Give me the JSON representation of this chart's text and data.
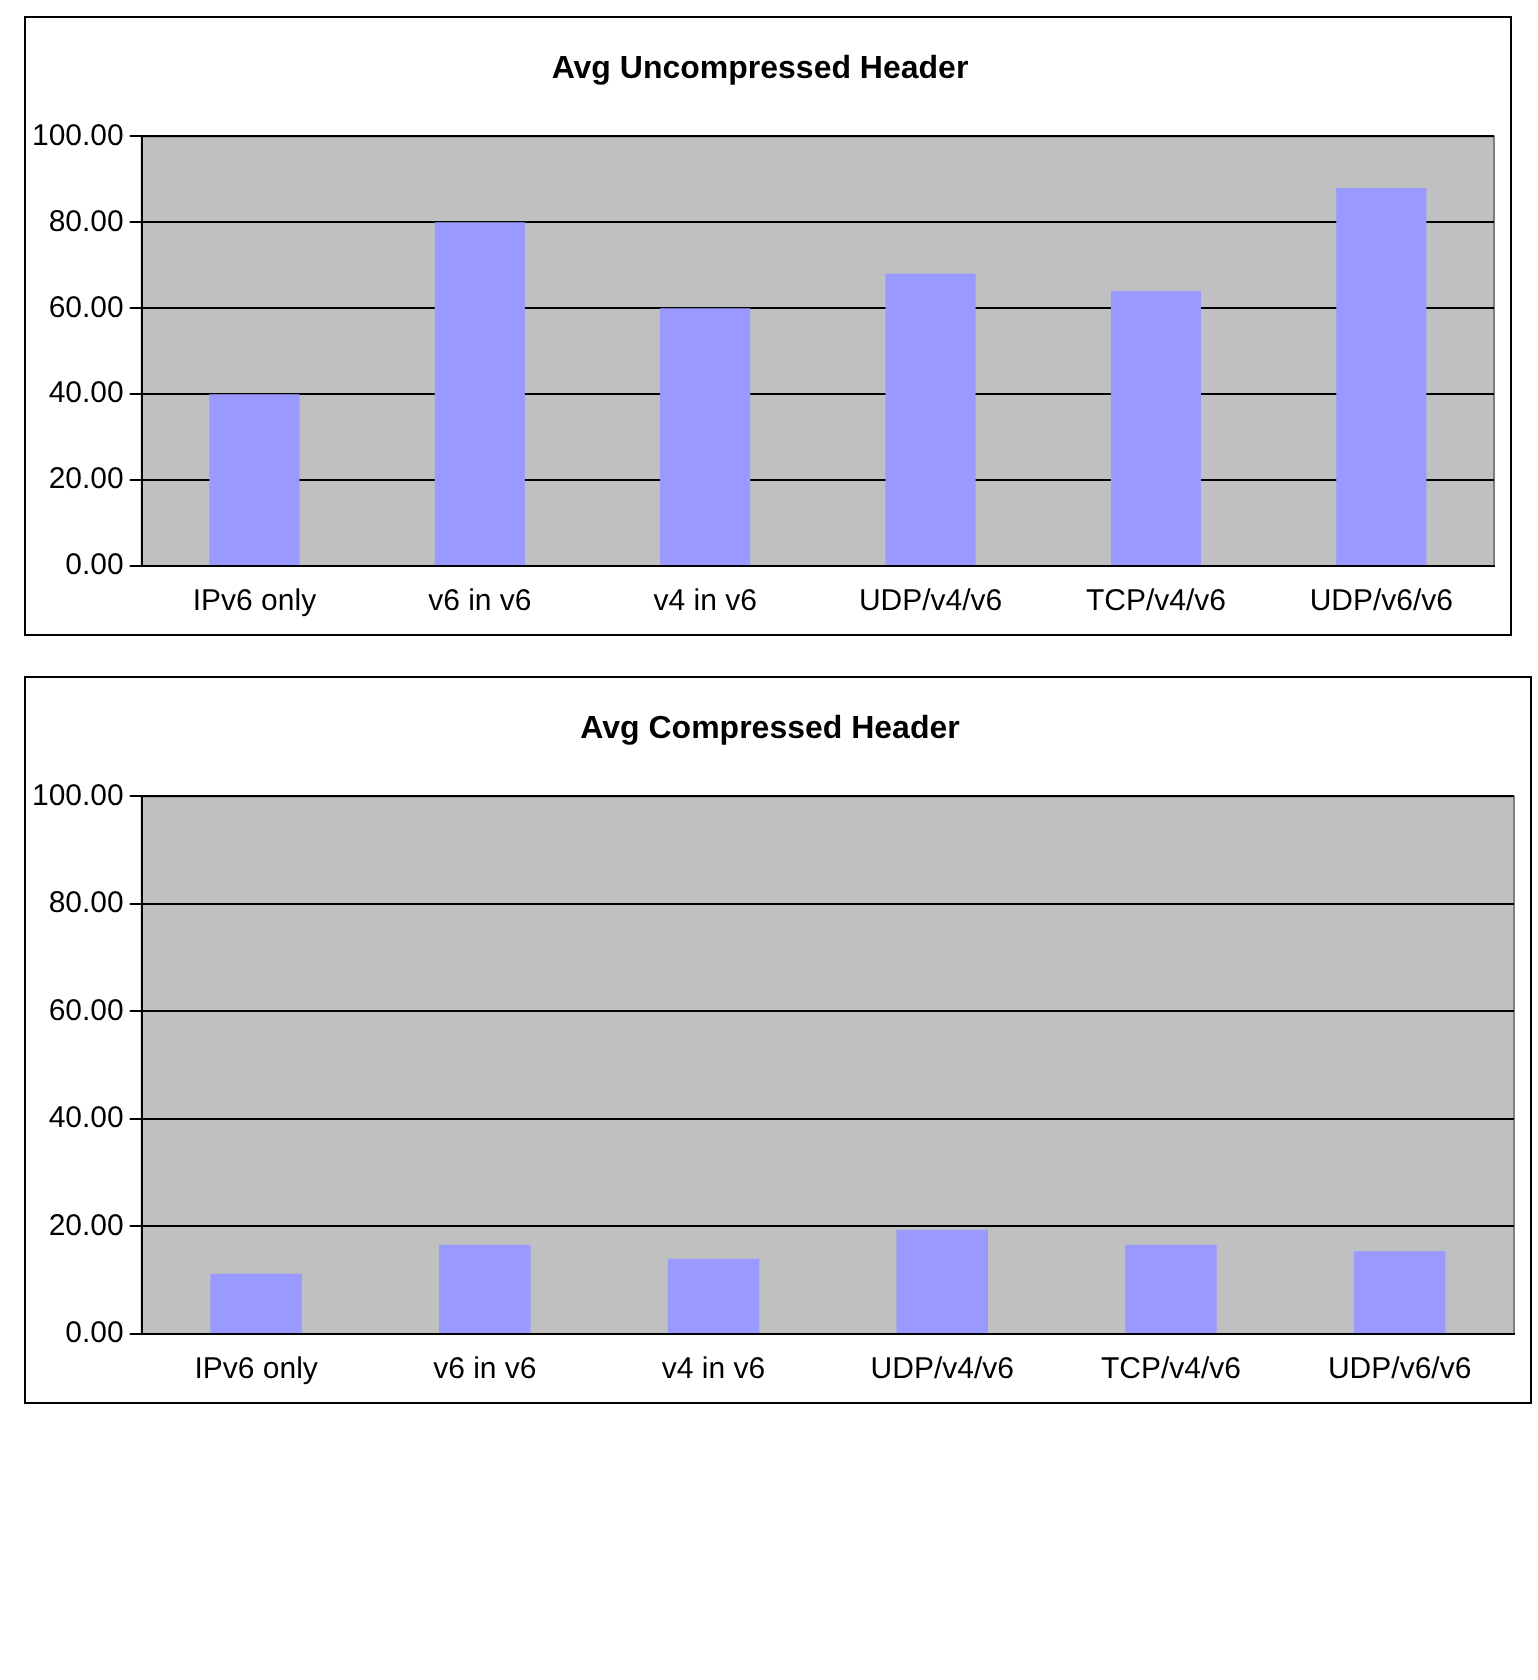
{
  "chart_data": [
    {
      "type": "bar",
      "title": "Avg Uncompressed Header",
      "categories": [
        "IPv6 only",
        "v6 in v6",
        "v4 in v6",
        "UDP/v4/v6",
        "TCP/v4/v6",
        "UDP/v6/v6"
      ],
      "values": [
        40,
        80,
        60,
        68,
        64,
        88
      ],
      "color": "#9999ff",
      "ylim": [
        0,
        100
      ],
      "yticks": [
        {
          "value": 0,
          "label": "0.00"
        },
        {
          "value": 20,
          "label": "20.00"
        },
        {
          "value": 40,
          "label": "40.00"
        },
        {
          "value": 60,
          "label": "60.00"
        },
        {
          "value": 80,
          "label": "80.00"
        },
        {
          "value": 100,
          "label": "100.00"
        }
      ],
      "grid": "y",
      "legend": false
    },
    {
      "type": "bar",
      "title": "Avg Compressed Header",
      "categories": [
        "IPv6 only",
        "v6 in v6",
        "v4 in v6",
        "UDP/v4/v6",
        "TCP/v4/v6",
        "UDP/v6/v6"
      ],
      "values": [
        11.2,
        16.6,
        14,
        19.4,
        16.6,
        15.4
      ],
      "color": "#9999ff",
      "ylim": [
        0,
        100
      ],
      "yticks": [
        {
          "value": 0,
          "label": "0.00"
        },
        {
          "value": 20,
          "label": "20.00"
        },
        {
          "value": 40,
          "label": "40.00"
        },
        {
          "value": 60,
          "label": "60.00"
        },
        {
          "value": 80,
          "label": "80.00"
        },
        {
          "value": 100,
          "label": "100.00"
        }
      ],
      "grid": "y",
      "legend": false
    }
  ]
}
